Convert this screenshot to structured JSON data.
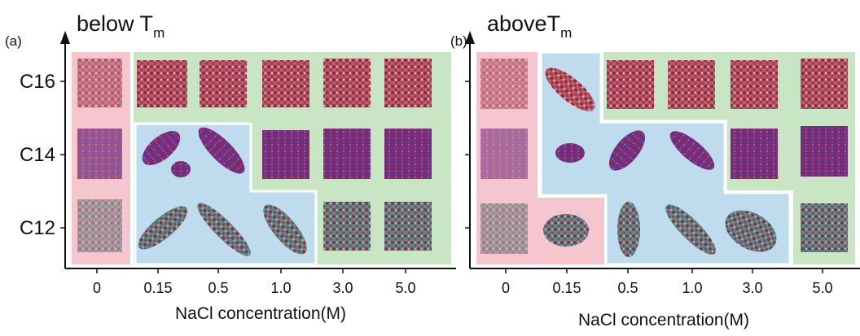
{
  "panels": [
    {
      "label": "(a)",
      "title": "below T",
      "title_sub": "m",
      "y_categories": [
        "C16",
        "C14",
        "C12"
      ],
      "x_categories": [
        "0",
        "0.15",
        "0.5",
        "1.0",
        "3.0",
        "5.0"
      ],
      "x_label": "NaCl concentration(M)"
    },
    {
      "label": "(b)",
      "title": "aboveT",
      "title_sub": "m",
      "x_categories": [
        "0",
        "0.15",
        "0.5",
        "1.0",
        "3.0",
        "5.0"
      ],
      "x_label": "NaCl concentration(M)"
    }
  ]
}
